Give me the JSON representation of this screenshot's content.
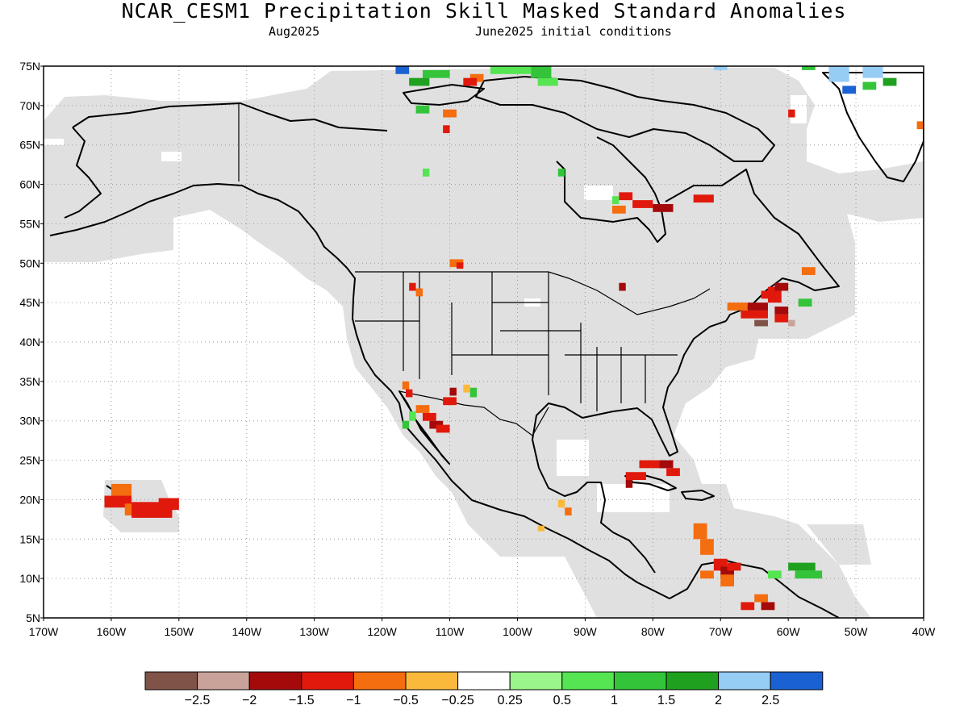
{
  "title": "NCAR_CESM1 Precipitation Skill Masked Standard Anomalies",
  "subtitle_left": "Aug2025",
  "subtitle_right": "June2025 initial conditions",
  "map": {
    "lon_range": [
      -170,
      -40
    ],
    "lat_range": [
      5,
      75
    ],
    "lat_labels": [
      "75N",
      "70N",
      "65N",
      "60N",
      "55N",
      "50N",
      "45N",
      "40N",
      "35N",
      "30N",
      "25N",
      "20N",
      "15N",
      "10N",
      "5N"
    ],
    "lon_labels": [
      "170W",
      "160W",
      "150W",
      "140W",
      "130W",
      "120W",
      "110W",
      "100W",
      "90W",
      "80W",
      "70W",
      "60W",
      "50W",
      "40W"
    ],
    "mask_color": "#e0e0e0",
    "grid": true
  },
  "colorbar": {
    "colors": [
      "#7f5347",
      "#c9a39a",
      "#a50a0a",
      "#e0190c",
      "#f46d0e",
      "#fbb93c",
      "#ffffff",
      "#9af58a",
      "#55e452",
      "#33c43a",
      "#1fa11f",
      "#95cdf5",
      "#1a62d3"
    ],
    "tick_labels": [
      "−2.5",
      "−2",
      "−1.5",
      "−1",
      "−0.5",
      "−0.25",
      "0.25",
      "0.5",
      "1",
      "1.5",
      "2",
      "2.5"
    ]
  }
}
